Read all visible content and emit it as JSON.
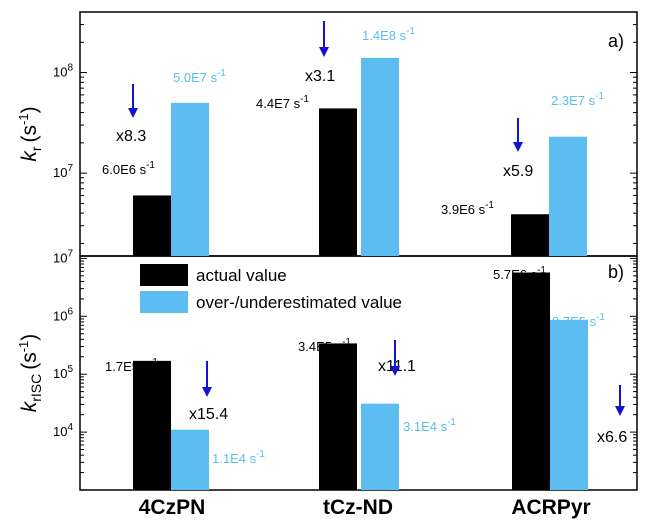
{
  "colors": {
    "actual": "#000000",
    "estimated": "#5bbdf0",
    "arrow": "#1313d6",
    "frame": "#000000"
  },
  "legend": [
    {
      "name": "actual value",
      "color_key": "actual"
    },
    {
      "name": "over-/underestimated value",
      "color_key": "estimated"
    }
  ],
  "chart_data": [
    {
      "type": "bar",
      "panel_label": "a)",
      "y_symbol": "k",
      "y_subscript": "r",
      "y_unit": "(s",
      "y_unit_exp": "-1",
      "y_unit_close": ")",
      "yscale": "log",
      "ylim": [
        1500000,
        400000000
      ],
      "y_ticks": [
        {
          "value": 10000000,
          "base": "10",
          "exp": "7"
        },
        {
          "value": 100000000,
          "base": "10",
          "exp": "8"
        }
      ],
      "categories": [
        "4CzPN",
        "tCz-ND",
        "ACRPyr"
      ],
      "series": [
        {
          "name": "actual value",
          "values": [
            6000000,
            44000000,
            3900000
          ],
          "labels": [
            "6.0E6 s",
            "4.4E7 s",
            "3.9E6 s"
          ]
        },
        {
          "name": "over-/underestimated value",
          "values": [
            50000000,
            140000000,
            23000000
          ],
          "labels": [
            "5.0E7 s",
            "1.4E8 s",
            "2.3E7 s"
          ]
        }
      ],
      "unit_exp": "-1",
      "factors": [
        "x8.3",
        "x3.1",
        "x5.9"
      ]
    },
    {
      "type": "bar",
      "panel_label": "b)",
      "y_symbol": "k",
      "y_subscript": "rISC",
      "y_unit": "(s",
      "y_unit_exp": "-1",
      "y_unit_close": ")",
      "yscale": "log",
      "ylim": [
        1000,
        11000000
      ],
      "y_ticks": [
        {
          "value": 10000,
          "base": "10",
          "exp": "4"
        },
        {
          "value": 100000,
          "base": "10",
          "exp": "5"
        },
        {
          "value": 1000000,
          "base": "10",
          "exp": "6"
        },
        {
          "value": 10000000,
          "base": "10",
          "exp": "7"
        }
      ],
      "categories": [
        "4CzPN",
        "tCz-ND",
        "ACRPyr"
      ],
      "series": [
        {
          "name": "actual value",
          "values": [
            170000,
            340000,
            5700000
          ],
          "labels": [
            "1.7E5 s",
            "3.4E5 s",
            "5.7E6 s"
          ]
        },
        {
          "name": "over-/underestimated value",
          "values": [
            11000,
            31000,
            870000
          ],
          "labels": [
            "1.1E4 s",
            "3.1E4 s",
            "8.7E5 s"
          ]
        }
      ],
      "unit_exp": "-1",
      "factors": [
        "x15.4",
        "x11.1",
        "x6.6"
      ]
    }
  ]
}
